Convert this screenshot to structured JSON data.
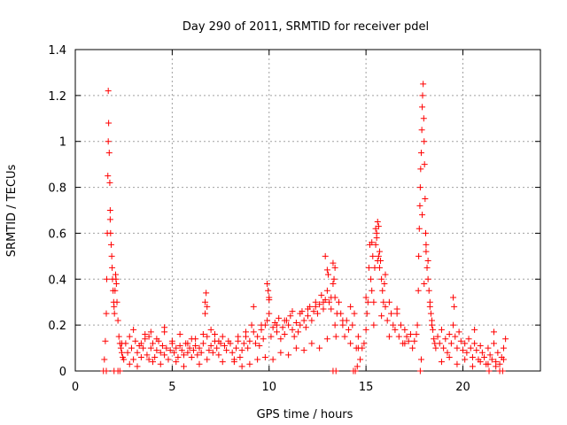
{
  "chart_data": {
    "type": "scatter",
    "title": "Day 290 of 2011, SRMTID for receiver pdel",
    "xlabel": "GPS time / hours",
    "ylabel": "SRMTID / TECUs",
    "xlim": [
      0,
      24
    ],
    "ylim": [
      0,
      1.4
    ],
    "xticks": [
      0,
      5,
      10,
      15,
      20
    ],
    "xtick_labels": [
      "0",
      "5",
      "10",
      "15",
      "20"
    ],
    "yticks": [
      0,
      0.2,
      0.4,
      0.6,
      0.8,
      1,
      1.2,
      1.4
    ],
    "ytick_labels": [
      "0",
      "0.2",
      "0.4",
      "0.6",
      "0.8",
      "1",
      "1.2",
      "1.4"
    ],
    "grid": true,
    "marker": "plus",
    "color": "#ff0000",
    "series": [
      {
        "name": "SRMTID",
        "x": [
          1.45,
          1.5,
          1.55,
          1.6,
          1.62,
          1.65,
          1.68,
          1.7,
          1.72,
          1.75,
          1.78,
          1.8,
          1.82,
          1.85,
          1.88,
          1.9,
          1.92,
          1.95,
          1.98,
          2.0,
          2.02,
          2.05,
          2.08,
          2.1,
          2.12,
          2.15,
          2.2,
          2.25,
          2.3,
          2.35,
          2.4,
          2.45,
          2.5,
          1.6,
          1.7,
          1.8,
          2.0,
          2.2,
          2.3,
          2.4,
          2.6,
          2.7,
          2.8,
          2.9,
          3.0,
          3.1,
          3.2,
          3.3,
          3.4,
          3.5,
          3.6,
          3.7,
          3.8,
          3.9,
          4.0,
          4.1,
          4.2,
          4.3,
          4.4,
          4.5,
          4.6,
          4.7,
          4.8,
          4.9,
          5.0,
          5.1,
          5.2,
          5.3,
          5.4,
          5.5,
          5.6,
          5.7,
          5.8,
          5.9,
          6.0,
          6.1,
          6.2,
          6.3,
          6.4,
          6.5,
          6.6,
          6.7,
          6.8,
          6.9,
          7.0,
          7.1,
          7.2,
          7.3,
          7.4,
          7.5,
          7.6,
          7.7,
          7.8,
          7.9,
          2.8,
          3.2,
          3.6,
          4.0,
          4.4,
          4.8,
          5.2,
          5.6,
          6.0,
          6.4,
          6.8,
          7.2,
          7.6,
          3.0,
          3.4,
          3.8,
          4.2,
          4.6,
          5.0,
          5.4,
          5.8,
          6.2,
          6.6,
          7.0,
          7.4,
          3.9,
          4.6,
          6.7,
          6.75,
          6.8,
          8.0,
          8.1,
          8.2,
          8.3,
          8.4,
          8.5,
          8.6,
          8.7,
          8.8,
          8.9,
          9.0,
          9.1,
          9.2,
          9.3,
          9.4,
          9.5,
          9.6,
          9.7,
          9.8,
          9.9,
          10.0,
          10.1,
          10.2,
          10.3,
          10.4,
          10.5,
          10.6,
          10.7,
          10.8,
          10.9,
          11.0,
          11.1,
          11.2,
          11.3,
          11.4,
          11.5,
          11.6,
          11.7,
          11.8,
          11.9,
          12.0,
          12.1,
          12.2,
          12.3,
          12.4,
          12.5,
          12.6,
          12.7,
          12.8,
          12.9,
          13.0,
          13.1,
          13.2,
          13.3,
          13.4,
          13.5,
          8.2,
          8.6,
          9.0,
          9.4,
          9.8,
          10.2,
          10.6,
          11.0,
          11.4,
          11.8,
          12.2,
          12.6,
          13.0,
          13.4,
          8.4,
          8.8,
          9.2,
          9.6,
          10.0,
          10.4,
          10.8,
          11.2,
          11.6,
          12.0,
          12.4,
          12.8,
          13.2,
          9.9,
          9.95,
          10.0,
          12.9,
          13.0,
          13.05,
          13.3,
          13.35,
          13.4,
          13.45,
          13.6,
          13.7,
          13.8,
          13.9,
          14.0,
          14.1,
          14.2,
          14.3,
          14.4,
          14.5,
          14.6,
          14.7,
          14.8,
          14.9,
          15.0,
          15.05,
          15.1,
          15.15,
          15.2,
          15.25,
          15.3,
          15.35,
          15.4,
          15.45,
          15.5,
          15.55,
          15.6,
          15.65,
          15.7,
          15.75,
          15.8,
          15.85,
          15.9,
          15.95,
          16.0,
          16.1,
          16.2,
          16.3,
          16.4,
          16.5,
          16.6,
          16.7,
          16.8,
          16.9,
          17.0,
          17.1,
          17.2,
          17.3,
          13.8,
          14.2,
          14.6,
          15.0,
          15.4,
          15.8,
          16.2,
          16.6,
          17.0,
          14.35,
          14.45,
          14.55,
          13.3,
          13.45,
          15.5,
          15.55,
          15.6,
          15.65,
          15.7,
          15.3,
          16.0,
          17.4,
          17.5,
          17.6,
          17.65,
          17.7,
          17.72,
          17.75,
          17.78,
          17.8,
          17.82,
          17.85,
          17.88,
          17.9,
          17.92,
          17.95,
          17.98,
          18.0,
          18.02,
          18.05,
          18.08,
          18.1,
          18.15,
          18.2,
          18.25,
          18.3,
          18.35,
          18.4,
          18.45,
          18.5,
          18.55,
          18.6,
          17.8,
          17.85,
          17.9,
          18.0,
          18.1,
          18.2,
          18.3,
          18.4,
          18.7,
          18.8,
          18.9,
          19.0,
          19.1,
          19.2,
          19.3,
          19.4,
          19.5,
          19.6,
          19.7,
          19.8,
          19.9,
          20.0,
          20.1,
          20.2,
          20.3,
          20.4,
          20.5,
          20.6,
          20.7,
          20.8,
          20.9,
          21.0,
          21.1,
          21.2,
          21.3,
          21.4,
          21.5,
          21.6,
          21.7,
          21.8,
          21.9,
          22.0,
          22.1,
          22.2,
          18.9,
          19.3,
          19.7,
          20.1,
          20.5,
          20.9,
          21.3,
          21.7,
          22.1,
          19.5,
          19.55,
          20.6,
          21.35,
          21.6,
          21.9,
          22.05
        ],
        "y": [
          0.0,
          0.05,
          0.13,
          0.25,
          0.4,
          0.6,
          0.85,
          1.22,
          1.08,
          0.95,
          0.82,
          0.7,
          0.6,
          0.55,
          0.5,
          0.45,
          0.4,
          0.35,
          0.3,
          0.28,
          0.25,
          0.35,
          0.42,
          0.4,
          0.38,
          0.3,
          0.22,
          0.15,
          0.12,
          0.1,
          0.08,
          0.06,
          0.05,
          0.0,
          1.0,
          0.66,
          0.0,
          0.0,
          0.0,
          0.12,
          0.12,
          0.08,
          0.15,
          0.1,
          0.05,
          0.13,
          0.08,
          0.11,
          0.06,
          0.1,
          0.14,
          0.07,
          0.05,
          0.1,
          0.12,
          0.06,
          0.09,
          0.13,
          0.08,
          0.11,
          0.07,
          0.1,
          0.05,
          0.09,
          0.12,
          0.08,
          0.1,
          0.06,
          0.11,
          0.09,
          0.07,
          0.12,
          0.08,
          0.1,
          0.06,
          0.09,
          0.11,
          0.07,
          0.1,
          0.08,
          0.12,
          0.25,
          0.15,
          0.09,
          0.11,
          0.08,
          0.13,
          0.1,
          0.07,
          0.12,
          0.15,
          0.11,
          0.09,
          0.13,
          0.03,
          0.02,
          0.16,
          0.04,
          0.03,
          0.05,
          0.04,
          0.02,
          0.14,
          0.03,
          0.05,
          0.16,
          0.04,
          0.18,
          0.12,
          0.15,
          0.14,
          0.17,
          0.13,
          0.16,
          0.12,
          0.14,
          0.16,
          0.18,
          0.13,
          0.17,
          0.19,
          0.3,
          0.34,
          0.28,
          0.12,
          0.08,
          0.05,
          0.1,
          0.13,
          0.06,
          0.09,
          0.12,
          0.15,
          0.1,
          0.13,
          0.2,
          0.17,
          0.12,
          0.15,
          0.11,
          0.18,
          0.14,
          0.2,
          0.22,
          0.25,
          0.15,
          0.19,
          0.21,
          0.17,
          0.23,
          0.14,
          0.19,
          0.16,
          0.22,
          0.2,
          0.24,
          0.18,
          0.15,
          0.21,
          0.17,
          0.2,
          0.26,
          0.22,
          0.19,
          0.24,
          0.28,
          0.22,
          0.26,
          0.3,
          0.25,
          0.29,
          0.33,
          0.27,
          0.31,
          0.35,
          0.3,
          0.27,
          0.38,
          0.32,
          0.25,
          0.04,
          0.02,
          0.03,
          0.05,
          0.06,
          0.05,
          0.08,
          0.07,
          0.1,
          0.09,
          0.12,
          0.1,
          0.14,
          0.2,
          0.15,
          0.17,
          0.28,
          0.2,
          0.31,
          0.2,
          0.22,
          0.26,
          0.25,
          0.27,
          0.28,
          0.3,
          0.32,
          0.38,
          0.35,
          0.32,
          0.5,
          0.44,
          0.42,
          0.47,
          0.4,
          0.45,
          0.0,
          0.3,
          0.25,
          0.2,
          0.15,
          0.22,
          0.18,
          0.12,
          0.2,
          0.25,
          0.1,
          0.15,
          0.05,
          0.1,
          0.12,
          0.18,
          0.25,
          0.3,
          0.45,
          0.55,
          0.4,
          0.35,
          0.5,
          0.3,
          0.45,
          0.62,
          0.58,
          0.65,
          0.5,
          0.45,
          0.48,
          0.4,
          0.35,
          0.3,
          0.38,
          0.28,
          0.22,
          0.3,
          0.25,
          0.2,
          0.18,
          0.25,
          0.15,
          0.2,
          0.12,
          0.18,
          0.15,
          0.13,
          0.16,
          0.22,
          0.28,
          0.1,
          0.32,
          0.2,
          0.24,
          0.15,
          0.27,
          0.12,
          0.0,
          0.0,
          0.02,
          0.0,
          0.15,
          0.55,
          0.6,
          0.48,
          0.63,
          0.52,
          0.56,
          0.42,
          0.1,
          0.13,
          0.16,
          0.2,
          0.35,
          0.5,
          0.62,
          0.72,
          0.8,
          0.88,
          0.95,
          1.05,
          1.15,
          1.2,
          1.25,
          1.1,
          1.0,
          0.9,
          0.75,
          0.6,
          0.55,
          0.45,
          0.4,
          0.35,
          0.3,
          0.25,
          0.2,
          0.18,
          0.14,
          0.12,
          0.1,
          0.0,
          0.05,
          0.68,
          0.38,
          0.52,
          0.48,
          0.28,
          0.22,
          0.15,
          0.12,
          0.18,
          0.1,
          0.14,
          0.08,
          0.16,
          0.12,
          0.2,
          0.15,
          0.1,
          0.17,
          0.13,
          0.09,
          0.12,
          0.08,
          0.14,
          0.1,
          0.06,
          0.12,
          0.09,
          0.05,
          0.11,
          0.08,
          0.06,
          0.03,
          0.1,
          0.07,
          0.05,
          0.12,
          0.04,
          0.08,
          0.03,
          0.06,
          0.1,
          0.14,
          0.04,
          0.06,
          0.03,
          0.05,
          0.02,
          0.04,
          0.03,
          0.02,
          0.05,
          0.32,
          0.28,
          0.18,
          0.0,
          0.17,
          0.0,
          0.0
        ]
      }
    ]
  }
}
